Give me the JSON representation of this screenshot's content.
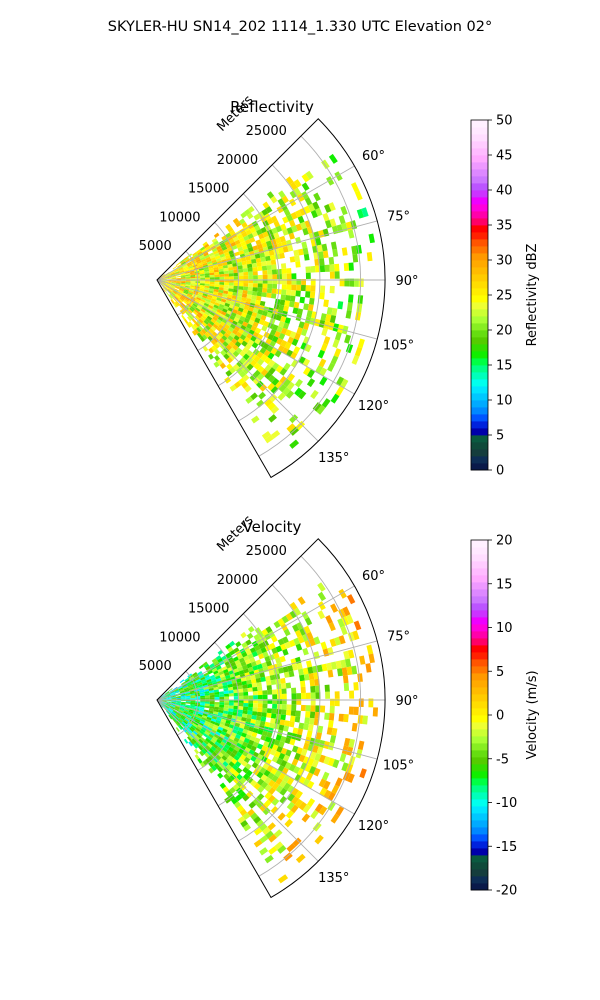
{
  "figure": {
    "suptitle": "SKYLER-HU  SN14_202  1114_1.330 UTC Elevation 02°"
  },
  "chart_data": [
    {
      "type": "heatmap",
      "projection": "polar-sector",
      "title": "Reflectivity",
      "radial_axis_label": "Meters",
      "radial_ticks": [
        5000,
        10000,
        15000,
        20000,
        25000
      ],
      "radial_tick_labels": [
        "5000",
        "10000",
        "15000",
        "20000",
        "25000"
      ],
      "rmax": 28000,
      "azimuth_range_deg": [
        45,
        150
      ],
      "azimuth_ticks_deg": [
        60,
        75,
        90,
        105,
        120,
        135
      ],
      "azimuth_tick_labels": [
        "60°",
        "75°",
        "90°",
        "105°",
        "120°",
        "135°"
      ],
      "grid": true,
      "colorbar": {
        "label": "Reflectivity dBZ",
        "vmin": 0,
        "vmax": 50,
        "ticks": [
          0,
          5,
          10,
          15,
          20,
          25,
          30,
          35,
          40,
          45,
          50
        ],
        "tick_labels": [
          "0",
          "5",
          "10",
          "15",
          "20",
          "25",
          "30",
          "35",
          "40",
          "45",
          "50"
        ]
      },
      "field_summary": {
        "typical_min": 15,
        "typical_max": 35,
        "near_range_values": 26,
        "far_range_values": 20
      }
    },
    {
      "type": "heatmap",
      "projection": "polar-sector",
      "title": "Velocity",
      "radial_axis_label": "Meters",
      "radial_ticks": [
        5000,
        10000,
        15000,
        20000,
        25000
      ],
      "radial_tick_labels": [
        "5000",
        "10000",
        "15000",
        "20000",
        "25000"
      ],
      "rmax": 28000,
      "azimuth_range_deg": [
        45,
        150
      ],
      "azimuth_ticks_deg": [
        60,
        75,
        90,
        105,
        120,
        135
      ],
      "azimuth_tick_labels": [
        "60°",
        "75°",
        "90°",
        "105°",
        "120°",
        "135°"
      ],
      "grid": true,
      "colorbar": {
        "label": "Velocity (m/s)",
        "vmin": -20,
        "vmax": 20,
        "ticks": [
          -20,
          -15,
          -10,
          -5,
          0,
          5,
          10,
          15,
          20
        ],
        "tick_labels": [
          "-20",
          "-15",
          "-10",
          "-5",
          "0",
          "5",
          "10",
          "15",
          "20"
        ]
      },
      "field_summary": {
        "typical_min": -10,
        "typical_max": 5,
        "near_range_values": -9,
        "far_range_values": 2
      }
    }
  ],
  "colormap": [
    "#0a1a4a",
    "#0d2d55",
    "#153d3d",
    "#0f4a3a",
    "#0a5a40",
    "#0000aa",
    "#0022dd",
    "#0055ff",
    "#0088ff",
    "#00aaff",
    "#00c8ff",
    "#00e5ff",
    "#00ffee",
    "#00ffbb",
    "#00ff88",
    "#00ff44",
    "#11ee00",
    "#33dd00",
    "#55cc00",
    "#66dd11",
    "#88ee22",
    "#aaff33",
    "#ccff33",
    "#eeff33",
    "#ffff00",
    "#ffee00",
    "#ffdd00",
    "#ffcc00",
    "#ffbb00",
    "#ffaa00",
    "#ff9900",
    "#ff7700",
    "#ff5500",
    "#ff2200",
    "#ff0000",
    "#ff0066",
    "#ff00aa",
    "#ff00dd",
    "#ee00ff",
    "#cc33ff",
    "#bb55ff",
    "#cc77ff",
    "#dd88ff",
    "#ee99ff",
    "#ffaaff",
    "#ffbbff",
    "#ffccff",
    "#ffddff",
    "#ffe8ff",
    "#fff0ff"
  ]
}
